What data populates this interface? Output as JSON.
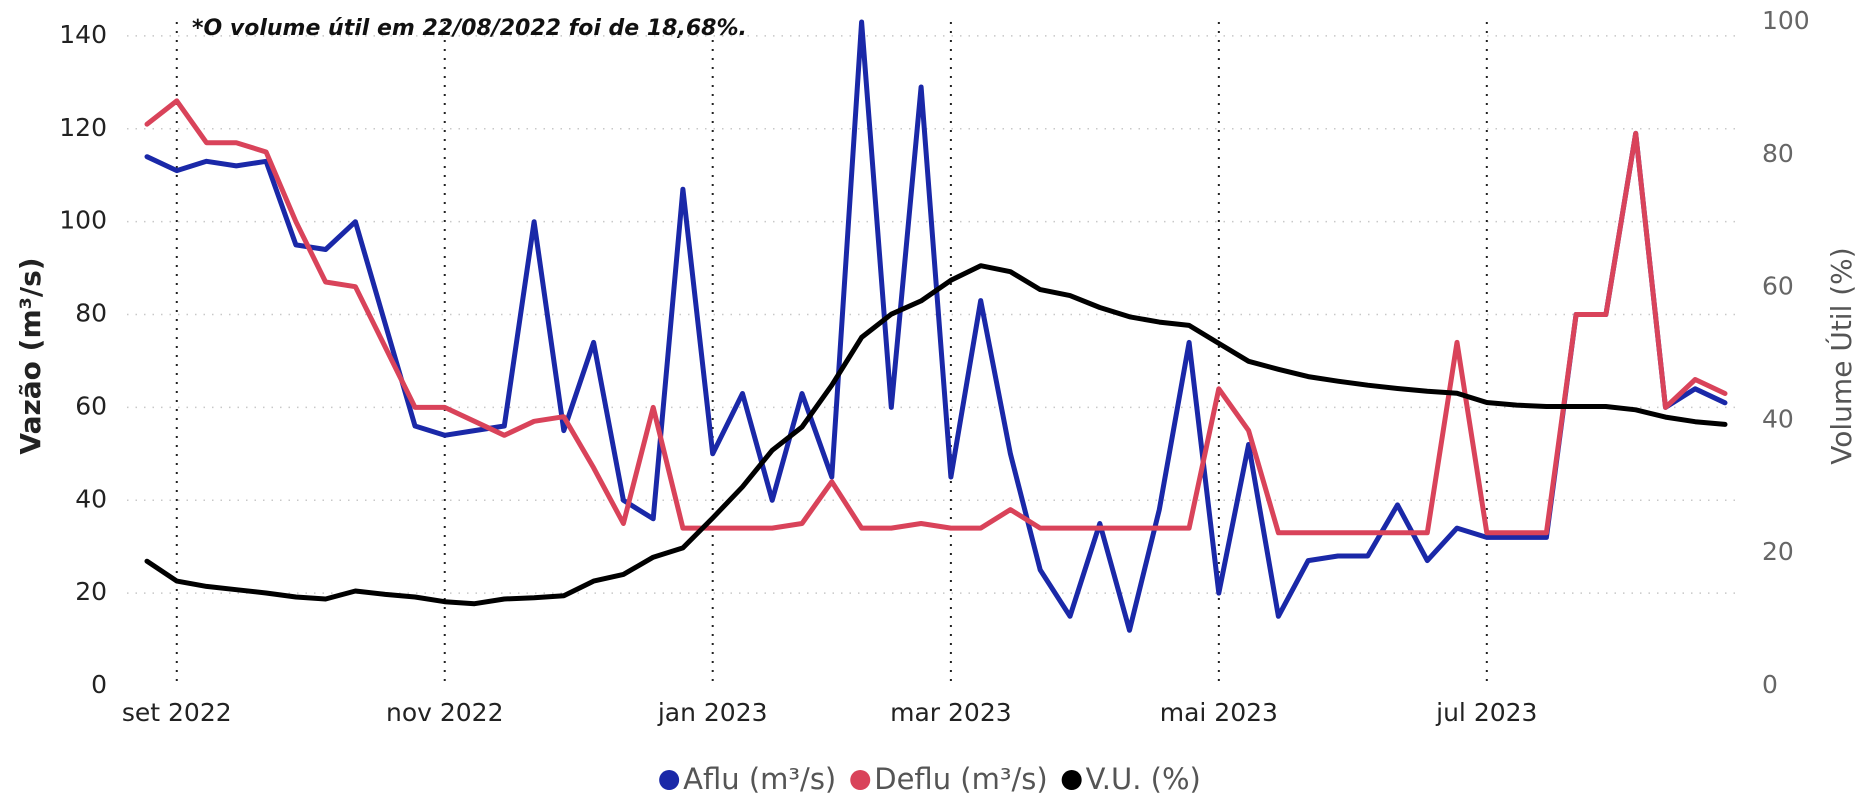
{
  "chart_data": {
    "type": "line",
    "annotation": "*O volume útil em 22/08/2022 foi de 18,68%.",
    "y_label": "Vazão (m³/s)",
    "y2_label": "Volume Útil (%)",
    "categories": [
      null,
      "set 2022",
      null,
      null,
      null,
      null,
      null,
      null,
      null,
      null,
      "nov 2022",
      null,
      null,
      null,
      null,
      null,
      null,
      null,
      null,
      "jan 2023",
      null,
      null,
      null,
      null,
      null,
      null,
      null,
      "mar 2023",
      null,
      null,
      null,
      null,
      null,
      null,
      null,
      null,
      "mai 2023",
      null,
      null,
      null,
      null,
      null,
      null,
      null,
      null,
      "jul 2023",
      null,
      null,
      null,
      null,
      null,
      null,
      null,
      null
    ],
    "ylim": [
      0,
      143
    ],
    "yticks": [
      0,
      20,
      40,
      60,
      80,
      100,
      120,
      140
    ],
    "y2lim": [
      0,
      100
    ],
    "y2ticks": [
      0,
      20,
      40,
      60,
      80,
      100
    ],
    "grid": true,
    "legend": "bottom",
    "series": [
      {
        "name": "Aflu (m³/s)",
        "color": "#1a28a8",
        "values": [
          114,
          111,
          113,
          112,
          113,
          95,
          94,
          100,
          78,
          56,
          54,
          55,
          56,
          100,
          55,
          74,
          40,
          36,
          107,
          50,
          63,
          40,
          63,
          45,
          143,
          60,
          129,
          45,
          83,
          50,
          25,
          15,
          35,
          12,
          38,
          74,
          20,
          52,
          15,
          27,
          28,
          28,
          39,
          27,
          34,
          32,
          32,
          32,
          80,
          80,
          119,
          60,
          64,
          61
        ]
      },
      {
        "name": "Deflu (m³/s)",
        "color": "#d9435a",
        "values": [
          121,
          126,
          117,
          117,
          115,
          100,
          87,
          86,
          73,
          60,
          60,
          57,
          54,
          57,
          58,
          47,
          35,
          60,
          34,
          34,
          34,
          34,
          35,
          44,
          34,
          34,
          35,
          34,
          34,
          38,
          34,
          34,
          34,
          34,
          34,
          34,
          64,
          55,
          33,
          33,
          33,
          33,
          33,
          33,
          74,
          33,
          33,
          33,
          80,
          80,
          119,
          60,
          66,
          63
        ]
      },
      {
        "name": "V.U. (%)",
        "color": "#000000",
        "axis": "y2",
        "values": [
          18.8,
          15.8,
          15,
          14.5,
          14,
          13.4,
          13.1,
          14.3,
          13.8,
          13.4,
          12.7,
          12.4,
          13.1,
          13.3,
          13.6,
          15.8,
          16.8,
          19.4,
          20.8,
          25.3,
          30,
          35.5,
          39,
          45.3,
          52.5,
          56,
          58,
          61.1,
          63.3,
          62.4,
          59.7,
          58.8,
          57,
          55.6,
          54.8,
          54.3,
          51.6,
          48.9,
          47.7,
          46.6,
          45.9,
          45.3,
          44.8,
          44.4,
          44.1,
          42.7,
          42.3,
          42.1,
          42.1,
          42.1,
          41.6,
          40.5,
          39.8,
          39.4
        ]
      }
    ]
  }
}
